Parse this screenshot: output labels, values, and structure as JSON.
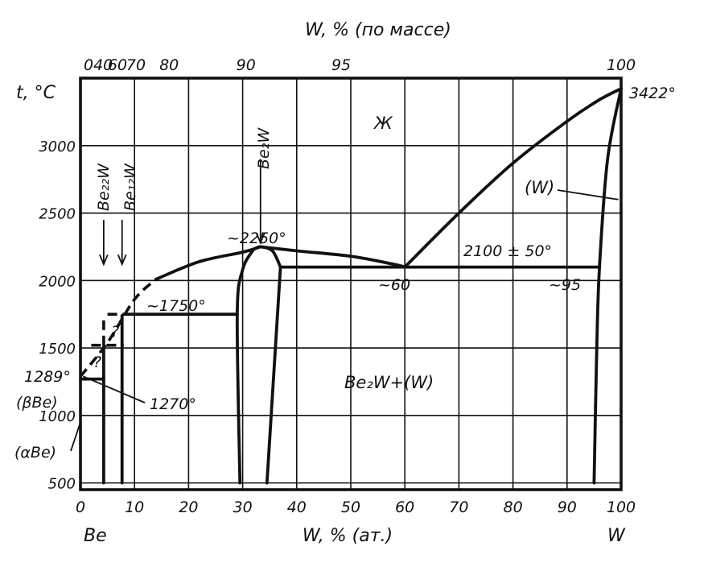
{
  "chart_data": {
    "type": "phase-diagram",
    "title": "W, % (по массе)",
    "xlabel": "W, % (ат.)",
    "ylabel": "t, °C",
    "xlim": [
      0,
      100
    ],
    "ylim": [
      450,
      3500
    ],
    "bottom_ticks": [
      "0",
      "10",
      "20",
      "30",
      "40",
      "50",
      "60",
      "70",
      "80",
      "90",
      "100"
    ],
    "bottom_tick_values": [
      0,
      10,
      20,
      30,
      40,
      50,
      60,
      70,
      80,
      90,
      100
    ],
    "left_ticks": [
      "500",
      "1000",
      "1500",
      "2000",
      "2500",
      "3000"
    ],
    "left_tick_values": [
      500,
      1000,
      1500,
      2000,
      2500,
      3000
    ],
    "top_ticks": [
      "0",
      "40",
      "60",
      "70",
      "80",
      "90",
      "95",
      "100"
    ],
    "top_tick_labels_display": [
      "040",
      "60",
      "70",
      "80",
      "90",
      "95",
      "100"
    ],
    "element_left": "Be",
    "element_right": "W",
    "phase_labels": {
      "liquid": "Ж",
      "w_solid": "(W)",
      "two_phase": "Be₂W+(W)",
      "beta_be": "(βBe)",
      "alpha_be": "(αBe)"
    },
    "compounds": [
      {
        "name": "Be₂₂W",
        "x": 4.3
      },
      {
        "name": "Be₁₂W",
        "x": 7.7
      },
      {
        "name": "Be₂W",
        "x": 33.3
      }
    ],
    "annotations": {
      "w_melting": "3422°",
      "be_melting": "1289°",
      "be_transition": "1270°",
      "be2w_max": "~2250°",
      "peritectic": "~1750°",
      "eutectic": "2100 ± 50°",
      "eutectic_liquid": "~60",
      "eutectic_solid": "~95",
      "uncertain": "?"
    },
    "liquidus_left": [
      [
        0,
        1289
      ],
      [
        5,
        1540
      ],
      [
        10,
        1860
      ],
      [
        14,
        2010
      ],
      [
        22,
        2140
      ],
      [
        30,
        2210
      ],
      [
        33.3,
        2250
      ]
    ],
    "liquidus_right": [
      [
        33.3,
        2250
      ],
      [
        40,
        2220
      ],
      [
        50,
        2180
      ],
      [
        58,
        2120
      ],
      [
        60,
        2100
      ]
    ],
    "liquidus_w": [
      [
        60,
        2100
      ],
      [
        70,
        2500
      ],
      [
        80,
        2870
      ],
      [
        90,
        3180
      ],
      [
        96,
        3340
      ],
      [
        100,
        3422
      ]
    ],
    "eutectic_line": [
      [
        37,
        2100
      ],
      [
        96,
        2100
      ]
    ],
    "peritectic_line": [
      [
        8,
        1750
      ],
      [
        29,
        1750
      ]
    ],
    "w_solvus": [
      [
        95,
        500
      ],
      [
        95.5,
        1500
      ],
      [
        96,
        2100
      ],
      [
        97.5,
        2900
      ],
      [
        100,
        3422
      ]
    ],
    "be2w_left_boundary": [
      [
        29.5,
        500
      ],
      [
        29,
        1750
      ],
      [
        30,
        2080
      ],
      [
        32,
        2230
      ]
    ],
    "be2w_right_boundary": [
      [
        34.5,
        500
      ],
      [
        37,
        2100
      ]
    ]
  }
}
